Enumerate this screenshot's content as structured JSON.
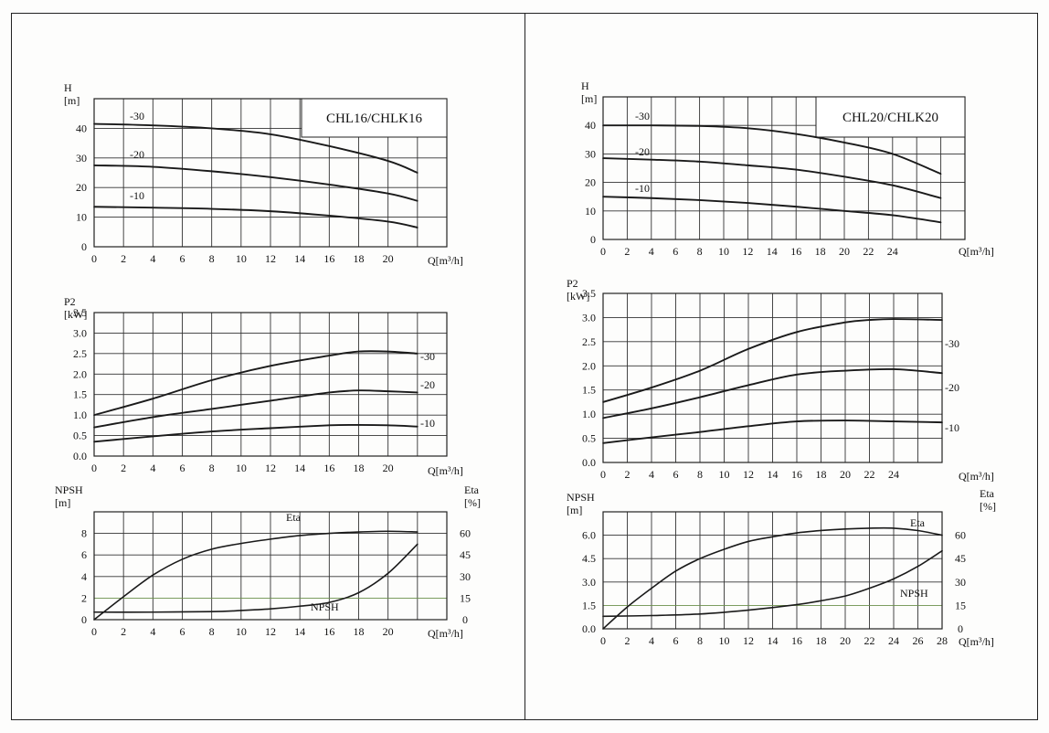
{
  "chart_data": [
    {
      "type": "line",
      "title": "CHL16/CHLK16",
      "ylabel_top": "H",
      "ylabel_unit": "[m]",
      "xlabel": "Q[m³/h]",
      "x_ticks": [
        "0",
        "2",
        "4",
        "6",
        "8",
        "10",
        "12",
        "14",
        "16",
        "18",
        "20"
      ],
      "y_ticks": [
        "0",
        "10",
        "20",
        "30",
        "40"
      ],
      "xlim": [
        0,
        24
      ],
      "ylim": [
        0,
        50
      ],
      "series": [
        {
          "name": "-30",
          "x": [
            0,
            4,
            8,
            12,
            16,
            20,
            22
          ],
          "y": [
            41.5,
            41,
            40,
            38,
            34,
            29,
            25
          ]
        },
        {
          "name": "-20",
          "x": [
            0,
            4,
            8,
            12,
            16,
            20,
            22
          ],
          "y": [
            27.5,
            27,
            25.5,
            23.5,
            21,
            18,
            15.5
          ]
        },
        {
          "name": "-10",
          "x": [
            0,
            4,
            8,
            12,
            16,
            20,
            22
          ],
          "y": [
            13.5,
            13.2,
            12.8,
            12,
            10.5,
            8.5,
            6.5
          ]
        }
      ]
    },
    {
      "type": "line",
      "ylabel_top": "P2",
      "ylabel_unit": "[kW]",
      "xlabel": "Q[m³/h]",
      "x_ticks": [
        "0",
        "2",
        "4",
        "6",
        "8",
        "10",
        "12",
        "14",
        "16",
        "18",
        "20"
      ],
      "y_ticks": [
        "0.0",
        "0.5",
        "1.0",
        "1.5",
        "2.0",
        "2.5",
        "3.0",
        "3.5"
      ],
      "xlim": [
        0,
        24
      ],
      "ylim": [
        0,
        3.5
      ],
      "series": [
        {
          "name": "-30",
          "x": [
            0,
            4,
            8,
            12,
            16,
            18,
            20,
            22
          ],
          "y": [
            1.0,
            1.4,
            1.85,
            2.2,
            2.45,
            2.55,
            2.55,
            2.5
          ]
        },
        {
          "name": "-20",
          "x": [
            0,
            4,
            8,
            12,
            16,
            18,
            20,
            22
          ],
          "y": [
            0.7,
            0.95,
            1.15,
            1.35,
            1.55,
            1.6,
            1.58,
            1.55
          ]
        },
        {
          "name": "-10",
          "x": [
            0,
            4,
            8,
            12,
            16,
            18,
            20,
            22
          ],
          "y": [
            0.35,
            0.48,
            0.6,
            0.68,
            0.75,
            0.76,
            0.75,
            0.72
          ]
        }
      ]
    },
    {
      "type": "line",
      "ylabel_top": "NPSH",
      "ylabel_unit": "[m]",
      "y2label_top": "Eta",
      "y2label_unit": "[%]",
      "xlabel": "Q[m³/h]",
      "x_ticks": [
        "0",
        "2",
        "4",
        "6",
        "8",
        "10",
        "12",
        "14",
        "16",
        "18",
        "20"
      ],
      "y_ticks": [
        "0",
        "2",
        "4",
        "6",
        "8"
      ],
      "y2_ticks": [
        "0",
        "15",
        "30",
        "45",
        "60"
      ],
      "xlim": [
        0,
        24
      ],
      "ylim": [
        0,
        10
      ],
      "y2lim": [
        0,
        75
      ],
      "series": [
        {
          "name": "Eta",
          "axis": "right",
          "x": [
            0,
            2,
            4,
            6,
            8,
            10,
            12,
            14,
            16,
            18,
            20,
            22
          ],
          "y": [
            0,
            16,
            31,
            42,
            49,
            53,
            56,
            58.5,
            60,
            61,
            61.5,
            61
          ]
        },
        {
          "name": "NPSH",
          "axis": "left",
          "x": [
            0,
            4,
            8,
            10,
            12,
            14,
            16,
            18,
            20,
            22
          ],
          "y": [
            0.7,
            0.7,
            0.75,
            0.85,
            1.0,
            1.25,
            1.6,
            2.5,
            4.3,
            7.0
          ]
        }
      ]
    },
    {
      "type": "line",
      "title": "CHL20/CHLK20",
      "ylabel_top": "H",
      "ylabel_unit": "[m]",
      "xlabel": "Q[m³/h]",
      "x_ticks": [
        "0",
        "2",
        "4",
        "6",
        "8",
        "10",
        "12",
        "14",
        "16",
        "18",
        "20",
        "22",
        "24"
      ],
      "y_ticks": [
        "0",
        "10",
        "20",
        "30",
        "40"
      ],
      "xlim": [
        0,
        30
      ],
      "ylim": [
        0,
        50
      ],
      "series": [
        {
          "name": "-30",
          "x": [
            0,
            4,
            8,
            12,
            16,
            20,
            24,
            28
          ],
          "y": [
            40,
            40,
            39.8,
            39,
            37,
            34,
            30,
            23
          ]
        },
        {
          "name": "-20",
          "x": [
            0,
            4,
            8,
            12,
            16,
            20,
            24,
            28
          ],
          "y": [
            28.5,
            28,
            27.3,
            26,
            24.5,
            22,
            19,
            14.5
          ]
        },
        {
          "name": "-10",
          "x": [
            0,
            4,
            8,
            12,
            16,
            20,
            24,
            28
          ],
          "y": [
            15,
            14.5,
            13.8,
            12.8,
            11.5,
            10,
            8.5,
            6
          ]
        }
      ]
    },
    {
      "type": "line",
      "ylabel_top": "P2",
      "ylabel_unit": "[kW]",
      "xlabel": "Q[m³/h]",
      "x_ticks": [
        "0",
        "2",
        "4",
        "6",
        "8",
        "10",
        "12",
        "14",
        "16",
        "18",
        "20",
        "22",
        "24"
      ],
      "y_ticks": [
        "0.0",
        "0.5",
        "1.0",
        "1.5",
        "2.0",
        "2.5",
        "3.0",
        "3.5"
      ],
      "xlim": [
        0,
        28
      ],
      "ylim": [
        0,
        3.5
      ],
      "series": [
        {
          "name": "-30",
          "x": [
            0,
            4,
            8,
            12,
            16,
            20,
            22,
            24,
            28
          ],
          "y": [
            1.25,
            1.55,
            1.9,
            2.35,
            2.7,
            2.9,
            2.95,
            2.97,
            2.95
          ]
        },
        {
          "name": "-20",
          "x": [
            0,
            4,
            8,
            12,
            16,
            20,
            24,
            28
          ],
          "y": [
            0.92,
            1.12,
            1.35,
            1.6,
            1.82,
            1.9,
            1.93,
            1.85
          ]
        },
        {
          "name": "-10",
          "x": [
            0,
            4,
            8,
            12,
            16,
            20,
            24,
            28
          ],
          "y": [
            0.4,
            0.52,
            0.63,
            0.75,
            0.85,
            0.87,
            0.85,
            0.83
          ]
        }
      ]
    },
    {
      "type": "line",
      "ylabel_top": "NPSH",
      "ylabel_unit": "[m]",
      "y2label_top": "Eta",
      "y2label_unit": "[%]",
      "xlabel": "Q[m³/h]",
      "x_ticks": [
        "0",
        "2",
        "4",
        "6",
        "8",
        "10",
        "12",
        "14",
        "16",
        "18",
        "20",
        "22",
        "24",
        "26",
        "28"
      ],
      "y_ticks": [
        "0.0",
        "1.5",
        "3.0",
        "4.5",
        "6.0"
      ],
      "y2_ticks": [
        "0",
        "15",
        "30",
        "45",
        "60"
      ],
      "xlim": [
        0,
        28
      ],
      "ylim": [
        0,
        7.5
      ],
      "y2lim": [
        0,
        75
      ],
      "series": [
        {
          "name": "Eta",
          "axis": "right",
          "x": [
            0,
            2,
            4,
            6,
            8,
            10,
            12,
            14,
            16,
            18,
            20,
            22,
            24,
            26,
            28
          ],
          "y": [
            0,
            14,
            26,
            37,
            45,
            51,
            56,
            59,
            61.5,
            63,
            64,
            64.5,
            64.5,
            63,
            60
          ]
        },
        {
          "name": "NPSH",
          "axis": "left",
          "x": [
            0,
            4,
            8,
            12,
            16,
            18,
            20,
            22,
            24,
            26,
            28
          ],
          "y": [
            0.8,
            0.85,
            0.95,
            1.2,
            1.55,
            1.8,
            2.1,
            2.6,
            3.2,
            4.0,
            5.0
          ]
        }
      ]
    }
  ]
}
